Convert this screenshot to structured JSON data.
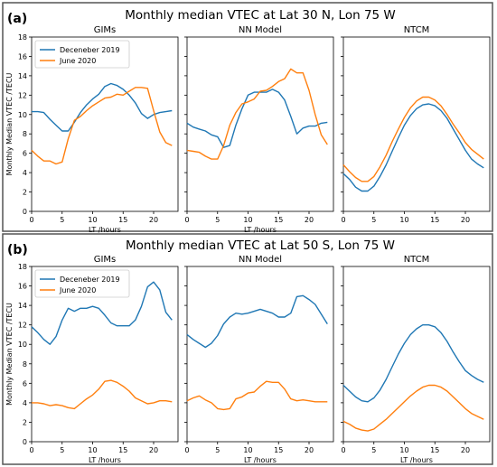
{
  "colors": {
    "series_dec": "#1f77b4",
    "series_jun": "#ff7f0e",
    "frame": "#555555"
  },
  "panels": [
    {
      "label": "(a)",
      "title": "Monthly median VTEC at Lat 30 N, Lon 75 W"
    },
    {
      "label": "(b)",
      "title": "Monthly median VTEC at Lat 50 S, Lon 75 W"
    }
  ],
  "legend": {
    "dec": "Deceneber 2019",
    "jun": "June 2020"
  },
  "chart_data": [
    {
      "type": "line",
      "title": "GIMs",
      "panel": "(a)",
      "xlabel": "LT /hours",
      "ylabel": "Monthly Median VTEC /TECU",
      "xlim": [
        0,
        24
      ],
      "ylim": [
        0,
        18
      ],
      "xticks": [
        0,
        5,
        10,
        15,
        20
      ],
      "yticks": [
        0,
        2,
        4,
        6,
        8,
        10,
        12,
        14,
        16,
        18
      ],
      "show_yticklabels": true,
      "show_legend": true,
      "legend_position": "upper-left",
      "series": [
        {
          "name": "Deceneber 2019",
          "x": [
            0,
            1,
            2,
            3,
            4,
            5,
            6,
            7,
            8,
            9,
            10,
            11,
            12,
            13,
            14,
            15,
            16,
            17,
            18,
            19,
            20,
            21,
            22,
            23
          ],
          "values": [
            10.3,
            10.3,
            10.2,
            9.5,
            8.9,
            8.3,
            8.3,
            9.2,
            10.2,
            11,
            11.6,
            12.1,
            12.9,
            13.2,
            13,
            12.6,
            12,
            11.2,
            10.1,
            9.6,
            10,
            10.2,
            10.3,
            10.4
          ]
        },
        {
          "name": "June 2020",
          "x": [
            0,
            1,
            2,
            3,
            4,
            5,
            6,
            7,
            8,
            9,
            10,
            11,
            12,
            13,
            14,
            15,
            16,
            17,
            18,
            19,
            20,
            21,
            22,
            23
          ],
          "values": [
            6.3,
            5.7,
            5.2,
            5.2,
            4.9,
            5.1,
            7.5,
            9.4,
            9.8,
            10.4,
            10.9,
            11.3,
            11.7,
            11.8,
            12.1,
            12,
            12.4,
            12.8,
            12.8,
            12.7,
            10.4,
            8.2,
            7.1,
            6.8
          ]
        }
      ]
    },
    {
      "type": "line",
      "title": "NN Model",
      "panel": "(a)",
      "xlabel": "LT /hours",
      "xlim": [
        0,
        24
      ],
      "ylim": [
        0,
        18
      ],
      "xticks": [
        0,
        5,
        10,
        15,
        20
      ],
      "yticks": [
        0,
        2,
        4,
        6,
        8,
        10,
        12,
        14,
        16,
        18
      ],
      "show_yticklabels": false,
      "show_legend": false,
      "series": [
        {
          "name": "Deceneber 2019",
          "x": [
            0,
            1,
            2,
            3,
            4,
            5,
            6,
            7,
            8,
            9,
            10,
            11,
            12,
            13,
            14,
            15,
            16,
            17,
            18,
            19,
            20,
            21,
            22,
            23
          ],
          "values": [
            9.1,
            8.7,
            8.5,
            8.3,
            7.9,
            7.7,
            6.6,
            6.8,
            8.9,
            10.6,
            12,
            12.3,
            12.3,
            12.3,
            12.6,
            12.3,
            11.5,
            9.8,
            8,
            8.6,
            8.8,
            8.8,
            9.1,
            9.2
          ]
        },
        {
          "name": "June 2020",
          "x": [
            0,
            1,
            2,
            3,
            4,
            5,
            6,
            7,
            8,
            9,
            10,
            11,
            12,
            13,
            14,
            15,
            16,
            17,
            18,
            19,
            20,
            21,
            22,
            23
          ],
          "values": [
            6.3,
            6.2,
            6.1,
            5.7,
            5.4,
            5.4,
            6.8,
            8.9,
            10.2,
            11.1,
            11.3,
            11.6,
            12.4,
            12.5,
            12.9,
            13.4,
            13.7,
            14.7,
            14.3,
            14.3,
            12.5,
            10,
            7.9,
            6.9
          ]
        }
      ]
    },
    {
      "type": "line",
      "title": "NTCM",
      "panel": "(a)",
      "xlabel": "",
      "xlim": [
        0,
        24
      ],
      "ylim": [
        0,
        18
      ],
      "xticks": [
        0,
        5,
        10,
        15,
        20
      ],
      "yticks": [
        0,
        2,
        4,
        6,
        8,
        10,
        12,
        14,
        16,
        18
      ],
      "show_yticklabels": false,
      "show_legend": false,
      "series": [
        {
          "name": "Deceneber 2019",
          "x": [
            0,
            1,
            2,
            3,
            4,
            5,
            6,
            7,
            8,
            9,
            10,
            11,
            12,
            13,
            14,
            15,
            16,
            17,
            18,
            19,
            20,
            21,
            22,
            23
          ],
          "values": [
            3.9,
            3.3,
            2.5,
            2.1,
            2.1,
            2.6,
            3.6,
            4.8,
            6.2,
            7.6,
            8.9,
            9.9,
            10.6,
            11,
            11.1,
            10.9,
            10.4,
            9.6,
            8.5,
            7.4,
            6.3,
            5.4,
            4.9,
            4.5
          ]
        },
        {
          "name": "June 2020",
          "x": [
            0,
            1,
            2,
            3,
            4,
            5,
            6,
            7,
            8,
            9,
            10,
            11,
            12,
            13,
            14,
            15,
            16,
            17,
            18,
            19,
            20,
            21,
            22,
            23
          ],
          "values": [
            4.8,
            4.1,
            3.5,
            3.1,
            3.1,
            3.6,
            4.6,
            5.8,
            7.2,
            8.5,
            9.7,
            10.7,
            11.4,
            11.8,
            11.8,
            11.5,
            10.9,
            10,
            9,
            8.1,
            7.1,
            6.4,
            5.9,
            5.4
          ]
        }
      ]
    },
    {
      "type": "line",
      "title": "GIMs",
      "panel": "(b)",
      "xlabel": "LT /hours",
      "ylabel": "Monthly Median VTEC /TECU",
      "xlim": [
        0,
        24
      ],
      "ylim": [
        0,
        18
      ],
      "xticks": [
        0,
        5,
        10,
        15,
        20
      ],
      "yticks": [
        0,
        2,
        4,
        6,
        8,
        10,
        12,
        14,
        16,
        18
      ],
      "show_yticklabels": true,
      "show_legend": true,
      "legend_position": "upper-left",
      "series": [
        {
          "name": "Deceneber 2019",
          "x": [
            0,
            1,
            2,
            3,
            4,
            5,
            6,
            7,
            8,
            9,
            10,
            11,
            12,
            13,
            14,
            15,
            16,
            17,
            18,
            19,
            20,
            21,
            22,
            23
          ],
          "values": [
            11.8,
            11.2,
            10.5,
            10,
            10.8,
            12.5,
            13.7,
            13.4,
            13.7,
            13.7,
            13.9,
            13.7,
            13,
            12.2,
            11.9,
            11.9,
            11.9,
            12.5,
            13.9,
            15.9,
            16.4,
            15.6,
            13.3,
            12.5
          ]
        },
        {
          "name": "June 2020",
          "x": [
            0,
            1,
            2,
            3,
            4,
            5,
            6,
            7,
            8,
            9,
            10,
            11,
            12,
            13,
            14,
            15,
            16,
            17,
            18,
            19,
            20,
            21,
            22,
            23
          ],
          "values": [
            4,
            4,
            3.9,
            3.7,
            3.8,
            3.7,
            3.5,
            3.4,
            3.9,
            4.4,
            4.8,
            5.4,
            6.2,
            6.3,
            6.1,
            5.7,
            5.2,
            4.5,
            4.2,
            3.9,
            4,
            4.2,
            4.2,
            4.1
          ]
        }
      ]
    },
    {
      "type": "line",
      "title": "NN Model",
      "panel": "(b)",
      "xlabel": "LT /hours",
      "xlim": [
        0,
        24
      ],
      "ylim": [
        0,
        18
      ],
      "xticks": [
        0,
        5,
        10,
        15,
        20
      ],
      "yticks": [
        0,
        2,
        4,
        6,
        8,
        10,
        12,
        14,
        16,
        18
      ],
      "show_yticklabels": false,
      "show_legend": false,
      "series": [
        {
          "name": "Deceneber 2019",
          "x": [
            0,
            1,
            2,
            3,
            4,
            5,
            6,
            7,
            8,
            9,
            10,
            11,
            12,
            13,
            14,
            15,
            16,
            17,
            18,
            19,
            20,
            21,
            22,
            23
          ],
          "values": [
            11,
            10.5,
            10.1,
            9.7,
            10.1,
            10.9,
            12.1,
            12.8,
            13.2,
            13.1,
            13.2,
            13.4,
            13.6,
            13.4,
            13.2,
            12.8,
            12.8,
            13.2,
            14.9,
            15,
            14.6,
            14.1,
            13.1,
            12.1
          ]
        },
        {
          "name": "June 2020",
          "x": [
            0,
            1,
            2,
            3,
            4,
            5,
            6,
            7,
            8,
            9,
            10,
            11,
            12,
            13,
            14,
            15,
            16,
            17,
            18,
            19,
            20,
            21,
            22,
            23
          ],
          "values": [
            4.2,
            4.5,
            4.7,
            4.3,
            4,
            3.4,
            3.3,
            3.4,
            4.4,
            4.6,
            5,
            5.1,
            5.7,
            6.2,
            6.1,
            6.1,
            5.4,
            4.4,
            4.2,
            4.3,
            4.2,
            4.1,
            4.1,
            4.1
          ]
        }
      ]
    },
    {
      "type": "line",
      "title": "NTCM",
      "panel": "(b)",
      "xlabel": "LT /hours",
      "xlim": [
        0,
        24
      ],
      "ylim": [
        0,
        18
      ],
      "xticks": [
        0,
        5,
        10,
        15,
        20
      ],
      "yticks": [
        0,
        2,
        4,
        6,
        8,
        10,
        12,
        14,
        16,
        18
      ],
      "show_yticklabels": false,
      "show_legend": false,
      "series": [
        {
          "name": "Deceneber 2019",
          "x": [
            0,
            1,
            2,
            3,
            4,
            5,
            6,
            7,
            8,
            9,
            10,
            11,
            12,
            13,
            14,
            15,
            16,
            17,
            18,
            19,
            20,
            21,
            22,
            23
          ],
          "values": [
            5.8,
            5.2,
            4.6,
            4.2,
            4.1,
            4.5,
            5.3,
            6.4,
            7.7,
            9,
            10.1,
            11,
            11.6,
            12,
            12,
            11.8,
            11.2,
            10.3,
            9.2,
            8.2,
            7.3,
            6.8,
            6.4,
            6.1
          ]
        },
        {
          "name": "June 2020",
          "x": [
            0,
            1,
            2,
            3,
            4,
            5,
            6,
            7,
            8,
            9,
            10,
            11,
            12,
            13,
            14,
            15,
            16,
            17,
            18,
            19,
            20,
            21,
            22,
            23
          ],
          "values": [
            2.1,
            1.8,
            1.4,
            1.2,
            1.1,
            1.3,
            1.8,
            2.3,
            2.9,
            3.5,
            4.1,
            4.7,
            5.2,
            5.6,
            5.8,
            5.8,
            5.6,
            5.2,
            4.6,
            4,
            3.4,
            2.9,
            2.6,
            2.3
          ]
        }
      ]
    }
  ]
}
